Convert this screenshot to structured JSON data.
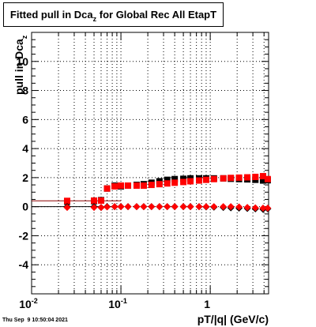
{
  "title": {
    "main": "Fitted pull in Dca",
    "sub": "z",
    "rest": " for Global Rec All EtapT"
  },
  "axes": {
    "ylabel_main": "pull in Dca",
    "ylabel_sub": "z",
    "xlabel": "pT/|q| (GeV/c)"
  },
  "timestamp": "Thu Sep  9 10:50:04 2021",
  "chart_data": {
    "type": "scatter",
    "title": "Fitted pull in Dca_z for Global Rec All EtapT",
    "xlabel": "pT/|q| (GeV/c)",
    "ylabel": "pull in Dca_z",
    "xscale": "log",
    "xlim": [
      0.01,
      4.5
    ],
    "ylim": [
      -6,
      12
    ],
    "grid": true,
    "x_tick_labels": [
      "10^-2",
      "10^-1",
      "1"
    ],
    "y_tick_labels": [
      "-4",
      "-2",
      "0",
      "2",
      "4",
      "6",
      "8",
      "10"
    ],
    "y_ticks": [
      -4,
      -2,
      0,
      2,
      4,
      6,
      8,
      10
    ],
    "series": [
      {
        "color": "#000000",
        "marker": "square",
        "x": [
          0.025,
          0.05,
          0.06,
          0.07,
          0.085,
          0.1,
          0.12,
          0.15,
          0.18,
          0.22,
          0.27,
          0.33,
          0.4,
          0.5,
          0.6,
          0.75,
          0.9,
          1.1,
          1.4,
          1.7,
          2.1,
          2.6,
          3.2,
          3.9,
          4.4
        ],
        "y": [
          0.35,
          0.38,
          0.45,
          1.25,
          1.45,
          1.4,
          1.45,
          1.5,
          1.55,
          1.65,
          1.75,
          1.85,
          1.9,
          1.92,
          1.95,
          1.95,
          1.95,
          1.95,
          1.95,
          1.92,
          1.9,
          1.88,
          1.85,
          1.8,
          1.82
        ]
      },
      {
        "color": "#ff0000",
        "marker": "square",
        "x": [
          0.025,
          0.05,
          0.06,
          0.07,
          0.085,
          0.1,
          0.12,
          0.15,
          0.18,
          0.22,
          0.27,
          0.33,
          0.4,
          0.5,
          0.6,
          0.75,
          0.9,
          1.1,
          1.4,
          1.7,
          2.1,
          2.6,
          3.2,
          3.9,
          4.4
        ],
        "y": [
          0.4,
          0.42,
          0.42,
          1.25,
          1.4,
          1.45,
          1.45,
          1.45,
          1.45,
          1.5,
          1.55,
          1.6,
          1.65,
          1.7,
          1.75,
          1.8,
          1.85,
          1.9,
          1.95,
          1.98,
          2.0,
          2.02,
          2.05,
          2.1,
          1.9
        ]
      },
      {
        "color": "#000000",
        "marker": "diamond",
        "x": [
          0.025,
          0.05,
          0.06,
          0.07,
          0.085,
          0.1,
          0.12,
          0.15,
          0.18,
          0.22,
          0.27,
          0.33,
          0.4,
          0.5,
          0.6,
          0.75,
          0.9,
          1.1,
          1.4,
          1.7,
          2.1,
          2.6,
          3.2,
          3.9,
          4.4
        ],
        "y": [
          0.0,
          0.0,
          -0.05,
          0.0,
          0.0,
          0.0,
          0.0,
          0.0,
          0.0,
          0.0,
          0.0,
          0.0,
          0.0,
          0.0,
          0.0,
          0.0,
          -0.02,
          -0.03,
          -0.05,
          -0.08,
          -0.1,
          -0.12,
          -0.15,
          -0.18,
          -0.15
        ]
      },
      {
        "color": "#ff0000",
        "marker": "diamond",
        "x": [
          0.025,
          0.05,
          0.06,
          0.07,
          0.085,
          0.1,
          0.12,
          0.15,
          0.18,
          0.22,
          0.27,
          0.33,
          0.4,
          0.5,
          0.6,
          0.75,
          0.9,
          1.1,
          1.4,
          1.7,
          2.1,
          2.6,
          3.2,
          3.9,
          4.4
        ],
        "y": [
          -0.05,
          -0.05,
          -0.05,
          -0.02,
          0.0,
          0.0,
          0.0,
          0.0,
          0.0,
          0.0,
          0.0,
          0.0,
          0.0,
          0.0,
          0.0,
          0.0,
          0.0,
          0.0,
          0.0,
          0.0,
          -0.02,
          -0.05,
          -0.08,
          -0.1,
          -0.1
        ]
      }
    ]
  }
}
